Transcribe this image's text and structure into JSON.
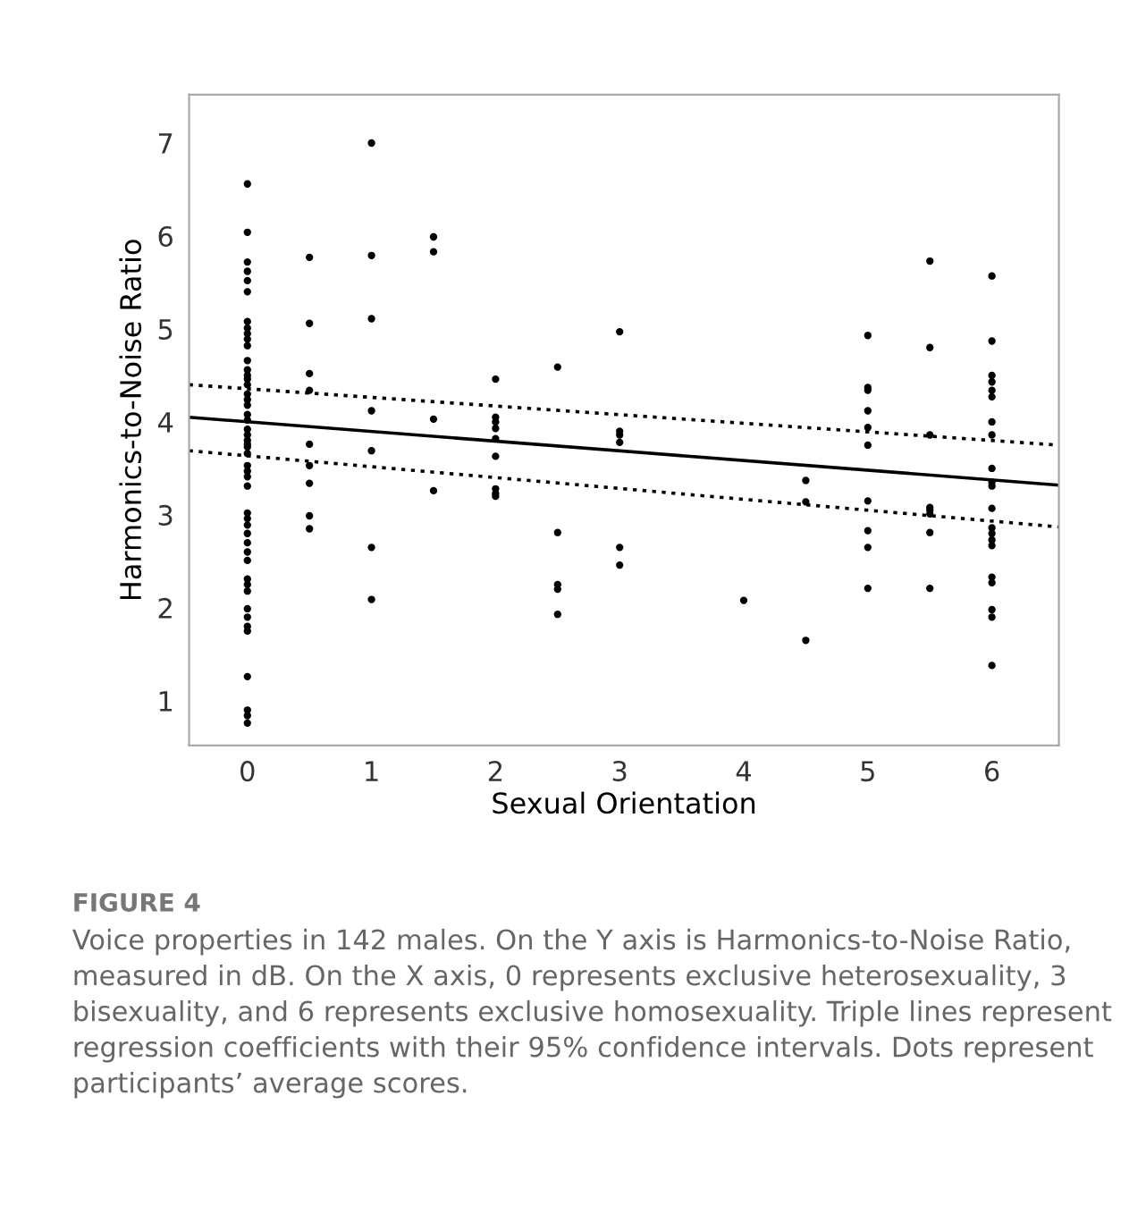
{
  "chart_data": {
    "type": "scatter",
    "xlabel": "Sexual Orientation",
    "ylabel": "Harmonics-to-Noise Ratio",
    "xlim": [
      -0.47,
      6.54
    ],
    "ylim": [
      0.52,
      7.52
    ],
    "xticks": [
      0,
      1,
      2,
      3,
      4,
      5,
      6
    ],
    "yticks": [
      1,
      2,
      3,
      4,
      5,
      6,
      7
    ],
    "grid": false,
    "legend": false,
    "annotations": [
      "FIGURE 4",
      "Voice properties in 142 males. On the Y axis is Harmonics-to-Noise Ratio, measured in dB. On the X axis, 0 represents exclusive heterosexuality, 3 bisexuality, and 6 represents exclusive homosexuality. Triple lines represent regression coefficients with their 95% confidence intervals. Dots represent participants’ average scores."
    ],
    "series": [
      {
        "color": "#000000",
        "marker": "circle",
        "x": [
          0,
          0,
          0,
          0,
          0,
          0,
          0,
          0,
          0,
          0,
          0,
          0,
          0,
          0,
          0,
          0,
          0,
          0,
          0,
          0,
          0,
          0,
          0,
          0,
          0,
          0,
          0,
          0,
          0,
          0,
          0,
          0,
          0,
          0,
          0,
          0,
          0,
          0,
          0,
          0,
          0,
          0,
          0,
          0,
          0,
          0,
          0,
          0,
          0,
          0.5,
          0.5,
          0.5,
          0.5,
          0.5,
          0.5,
          0.5,
          0.5,
          0.5,
          1,
          1,
          1,
          1,
          1,
          1,
          1,
          1.5,
          1.5,
          1.5,
          1.5,
          2,
          2,
          2,
          2,
          2,
          2,
          2,
          2,
          2,
          2.5,
          2.5,
          2.5,
          2.5,
          2.5,
          3,
          3,
          3,
          3,
          3,
          3,
          4,
          4.5,
          4.5,
          4.5,
          5,
          5,
          5,
          5,
          5,
          5,
          5,
          5,
          5,
          5,
          5.5,
          5.5,
          5.5,
          5.5,
          5.5,
          5.5,
          5.5,
          5.5,
          6,
          6,
          6,
          6,
          6,
          6,
          6,
          6,
          6,
          6,
          6,
          6,
          6,
          6,
          6,
          6,
          6,
          6,
          6,
          6,
          6
        ],
        "values": [
          6.56,
          6.04,
          5.72,
          5.62,
          5.52,
          5.4,
          5.08,
          5.01,
          4.95,
          4.89,
          4.82,
          4.66,
          4.56,
          4.5,
          4.46,
          4.4,
          4.3,
          4.24,
          4.18,
          4.08,
          4.02,
          3.92,
          3.86,
          3.8,
          3.76,
          3.73,
          3.66,
          3.53,
          3.47,
          3.41,
          3.31,
          3.02,
          2.96,
          2.89,
          2.8,
          2.7,
          2.6,
          2.51,
          2.31,
          2.25,
          2.18,
          1.99,
          1.9,
          1.8,
          1.75,
          1.26,
          0.9,
          0.84,
          0.76,
          5.77,
          5.06,
          4.52,
          4.34,
          3.76,
          3.53,
          3.34,
          2.99,
          2.85,
          7.0,
          5.79,
          5.11,
          4.12,
          3.69,
          2.65,
          2.09,
          5.99,
          5.83,
          4.03,
          3.26,
          4.46,
          4.05,
          4.0,
          3.93,
          3.82,
          3.63,
          3.28,
          3.23,
          3.2,
          4.59,
          2.81,
          2.25,
          2.2,
          1.93,
          4.97,
          3.9,
          3.86,
          3.78,
          2.65,
          2.46,
          2.08,
          3.37,
          3.14,
          1.65,
          4.93,
          4.37,
          4.34,
          4.12,
          3.94,
          3.75,
          3.15,
          2.83,
          2.65,
          2.21,
          5.73,
          4.8,
          3.86,
          3.08,
          3.05,
          3.01,
          2.81,
          2.21,
          5.57,
          4.87,
          4.5,
          4.43,
          4.34,
          4.27,
          4.0,
          3.86,
          3.5,
          3.35,
          3.31,
          3.07,
          2.86,
          2.8,
          2.73,
          2.67,
          2.33,
          2.27,
          1.98,
          1.9,
          1.38
        ]
      },
      {
        "type": "line",
        "color": "#000000",
        "line_style": "solid",
        "marker": "none",
        "x": [
          -0.47,
          6.54
        ],
        "values": [
          4.05,
          3.32
        ]
      },
      {
        "type": "line",
        "color": "#000000",
        "line_style": "dotted",
        "marker": "none",
        "x": [
          -0.47,
          6.54
        ],
        "values": [
          4.4,
          3.75
        ]
      },
      {
        "type": "line",
        "color": "#000000",
        "line_style": "dotted",
        "marker": "none",
        "x": [
          -0.47,
          6.54
        ],
        "values": [
          3.69,
          2.87
        ]
      }
    ]
  }
}
